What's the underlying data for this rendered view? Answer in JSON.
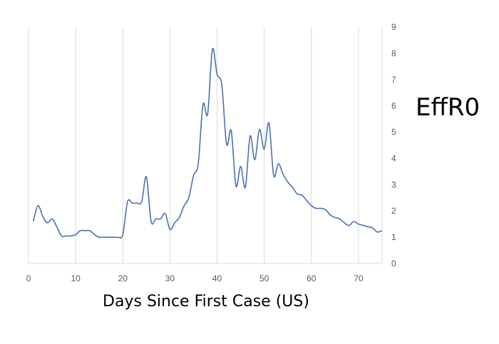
{
  "chart_data": {
    "type": "line",
    "xlabel": "Days Since First Case (US)",
    "ylabel": "EffR0",
    "xlim": [
      0,
      75
    ],
    "ylim": [
      0,
      9
    ],
    "x_ticks": [
      0,
      10,
      20,
      30,
      40,
      50,
      60,
      70
    ],
    "y_ticks": [
      0,
      1,
      2,
      3,
      4,
      5,
      6,
      7,
      8,
      9
    ],
    "y_axis_position": "right",
    "grid": {
      "vertical": true,
      "horizontal": false
    },
    "line_color": "#4a72b0",
    "series": [
      {
        "x": [
          1,
          2,
          3,
          4,
          5,
          6,
          7,
          8,
          9,
          10,
          11,
          12,
          13,
          14,
          15,
          16,
          17,
          18,
          19,
          20,
          21,
          22,
          23,
          24,
          25,
          26,
          27,
          28,
          29,
          30,
          31,
          32,
          33,
          34,
          35,
          36,
          37,
          38,
          39,
          40,
          41,
          42,
          43,
          44,
          45,
          46,
          47,
          48,
          49,
          50,
          51,
          52,
          53,
          54,
          55,
          56,
          57,
          58,
          59,
          60,
          61,
          62,
          63,
          64,
          65,
          66,
          67,
          68,
          69,
          70,
          71,
          72,
          73,
          74,
          75
        ],
        "y": [
          1.6,
          2.2,
          1.8,
          1.55,
          1.7,
          1.4,
          1.05,
          1.05,
          1.05,
          1.1,
          1.25,
          1.25,
          1.25,
          1.1,
          1.0,
          1.0,
          1.0,
          1.0,
          1.0,
          1.1,
          2.35,
          2.3,
          2.3,
          2.35,
          3.3,
          1.6,
          1.7,
          1.7,
          1.9,
          1.3,
          1.55,
          1.75,
          2.2,
          2.5,
          3.35,
          3.8,
          6.05,
          5.7,
          8.15,
          7.2,
          6.8,
          4.55,
          5.05,
          2.95,
          3.7,
          2.9,
          4.85,
          3.95,
          5.1,
          4.35,
          5.35,
          3.35,
          3.8,
          3.4,
          3.1,
          2.9,
          2.65,
          2.6,
          2.4,
          2.2,
          2.1,
          2.1,
          2.05,
          1.85,
          1.75,
          1.7,
          1.55,
          1.45,
          1.6,
          1.5,
          1.45,
          1.4,
          1.35,
          1.2,
          1.25
        ]
      }
    ]
  }
}
